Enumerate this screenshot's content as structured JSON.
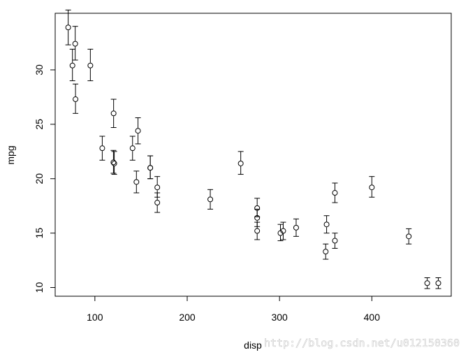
{
  "chart_data": {
    "type": "scatter",
    "error_bars": true,
    "xlabel": "disp",
    "ylabel": "mpg",
    "xlim": [
      57,
      486
    ],
    "ylim": [
      9.2,
      35.2
    ],
    "x_ticks": [
      100,
      200,
      300,
      400
    ],
    "y_ticks": [
      10,
      15,
      20,
      25,
      30
    ],
    "grid": false,
    "box": true,
    "points": [
      {
        "x": 71.1,
        "y": 33.9,
        "lo": 32.3,
        "hi": 35.5
      },
      {
        "x": 75.7,
        "y": 30.4,
        "lo": 29.0,
        "hi": 31.9
      },
      {
        "x": 78.7,
        "y": 32.4,
        "lo": 30.9,
        "hi": 34.0
      },
      {
        "x": 79.0,
        "y": 27.3,
        "lo": 26.0,
        "hi": 28.7
      },
      {
        "x": 95.1,
        "y": 30.4,
        "lo": 29.0,
        "hi": 31.9
      },
      {
        "x": 108.0,
        "y": 22.8,
        "lo": 21.7,
        "hi": 23.9
      },
      {
        "x": 120.1,
        "y": 21.5,
        "lo": 20.5,
        "hi": 22.6
      },
      {
        "x": 120.3,
        "y": 26.0,
        "lo": 24.7,
        "hi": 27.3
      },
      {
        "x": 121.0,
        "y": 21.4,
        "lo": 20.4,
        "hi": 22.5
      },
      {
        "x": 140.8,
        "y": 22.8,
        "lo": 21.7,
        "hi": 23.9
      },
      {
        "x": 145.0,
        "y": 19.7,
        "lo": 18.7,
        "hi": 20.7
      },
      {
        "x": 146.7,
        "y": 24.4,
        "lo": 23.2,
        "hi": 25.6
      },
      {
        "x": 160.0,
        "y": 21.0,
        "lo": 20.0,
        "hi": 22.1
      },
      {
        "x": 160.0,
        "y": 21.0,
        "lo": 20.0,
        "hi": 22.1
      },
      {
        "x": 167.6,
        "y": 19.2,
        "lo": 18.3,
        "hi": 20.2
      },
      {
        "x": 167.6,
        "y": 17.8,
        "lo": 16.9,
        "hi": 18.7
      },
      {
        "x": 225.0,
        "y": 18.1,
        "lo": 17.2,
        "hi": 19.0
      },
      {
        "x": 258.0,
        "y": 21.4,
        "lo": 20.4,
        "hi": 22.5
      },
      {
        "x": 275.8,
        "y": 16.4,
        "lo": 15.6,
        "hi": 17.2
      },
      {
        "x": 275.8,
        "y": 17.3,
        "lo": 16.5,
        "hi": 18.2
      },
      {
        "x": 275.8,
        "y": 15.2,
        "lo": 14.4,
        "hi": 16.0
      },
      {
        "x": 301.0,
        "y": 15.0,
        "lo": 14.3,
        "hi": 15.8
      },
      {
        "x": 304.0,
        "y": 15.2,
        "lo": 14.4,
        "hi": 16.0
      },
      {
        "x": 318.0,
        "y": 15.5,
        "lo": 14.7,
        "hi": 16.3
      },
      {
        "x": 350.0,
        "y": 13.3,
        "lo": 12.6,
        "hi": 14.0
      },
      {
        "x": 351.0,
        "y": 15.8,
        "lo": 15.0,
        "hi": 16.6
      },
      {
        "x": 360.0,
        "y": 18.7,
        "lo": 17.8,
        "hi": 19.6
      },
      {
        "x": 360.0,
        "y": 14.3,
        "lo": 13.6,
        "hi": 15.0
      },
      {
        "x": 400.0,
        "y": 19.2,
        "lo": 18.3,
        "hi": 20.2
      },
      {
        "x": 440.0,
        "y": 14.7,
        "lo": 14.0,
        "hi": 15.4
      },
      {
        "x": 460.0,
        "y": 10.4,
        "lo": 9.9,
        "hi": 10.9
      },
      {
        "x": 472.0,
        "y": 10.4,
        "lo": 9.9,
        "hi": 10.9
      }
    ]
  },
  "watermark": "http://blog.csdn.net/u012150360"
}
